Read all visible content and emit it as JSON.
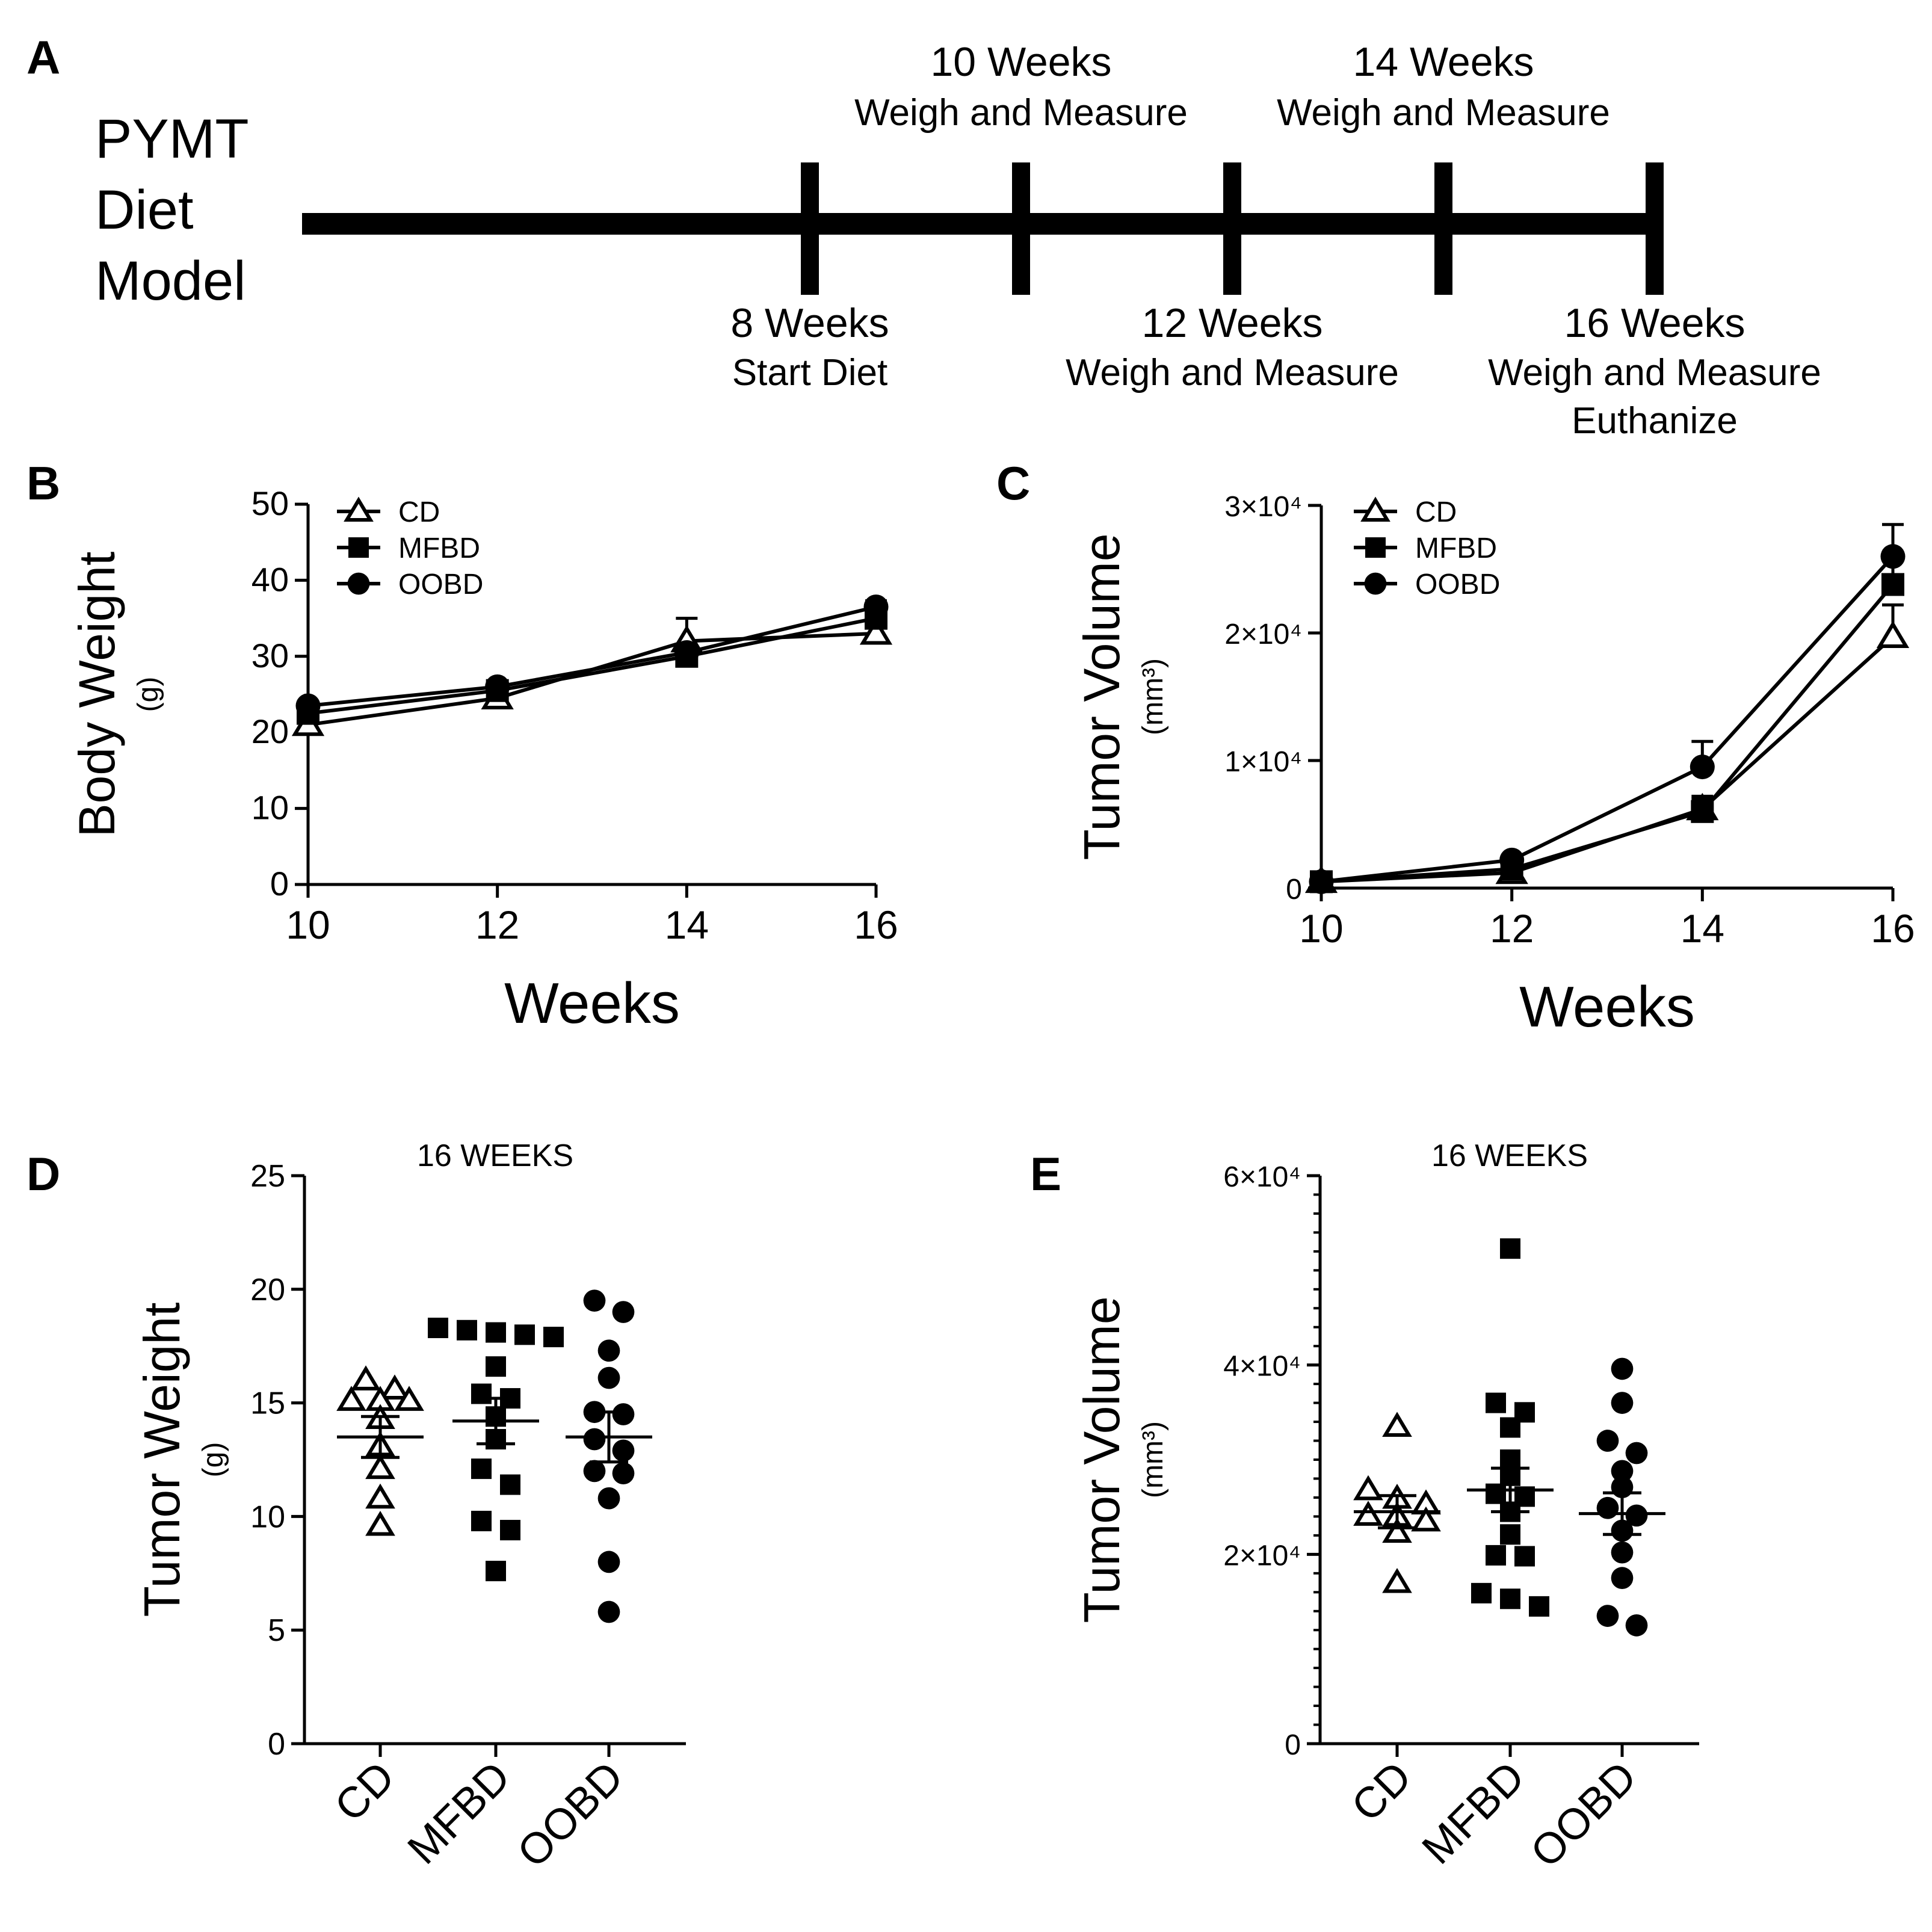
{
  "panel_labels": {
    "a": "A",
    "b": "B",
    "c": "C",
    "d": "D",
    "e": "E"
  },
  "timeline": {
    "model_lines": [
      "PYMT",
      "Diet",
      "Model"
    ],
    "above": [
      {
        "week": 10,
        "line1": "10 Weeks",
        "line2": "Weigh and Measure"
      },
      {
        "week": 14,
        "line1": "14 Weeks",
        "line2": "Weigh and Measure"
      }
    ],
    "below": [
      {
        "week": 8,
        "line1": "8 Weeks",
        "line2": "Start Diet",
        "line3": ""
      },
      {
        "week": 12,
        "line1": "12 Weeks",
        "line2": "Weigh and Measure",
        "line3": ""
      },
      {
        "week": 16,
        "line1": "16 Weeks",
        "line2": "Weigh and Measure",
        "line3": "Euthanize"
      }
    ]
  },
  "chart_data": [
    {
      "id": "B",
      "type": "line",
      "title": "",
      "xlabel": "Weeks",
      "ylabel": "Body Weight",
      "ylabel_unit": "(g)",
      "x": [
        10,
        12,
        14,
        16
      ],
      "xticks": [
        "10",
        "12",
        "14",
        "16"
      ],
      "yticks": [
        "0",
        "10",
        "20",
        "30",
        "40",
        "50"
      ],
      "ylim": [
        0,
        50
      ],
      "legend": "top-left",
      "series": [
        {
          "name": "CD",
          "marker": "triangle-open",
          "values": [
            21,
            24.5,
            32,
            33
          ],
          "err": [
            0.8,
            0.8,
            3,
            1
          ]
        },
        {
          "name": "MFBD",
          "marker": "square",
          "values": [
            22.5,
            25.5,
            30,
            35
          ],
          "err": [
            0.6,
            0.6,
            0.8,
            0.8
          ]
        },
        {
          "name": "OOBD",
          "marker": "circle",
          "values": [
            23.5,
            26,
            30.5,
            36.5
          ],
          "err": [
            0.6,
            0.6,
            0.8,
            0.8
          ]
        }
      ]
    },
    {
      "id": "C",
      "type": "line",
      "title": "",
      "xlabel": "Weeks",
      "ylabel": "Tumor Volume",
      "ylabel_unit": "(mm³)",
      "x": [
        10,
        12,
        14,
        16
      ],
      "xticks": [
        "10",
        "12",
        "14",
        "16"
      ],
      "yticks": [
        "0",
        "1×10⁴",
        "2×10⁴",
        "3×10⁴"
      ],
      "ylim": [
        0,
        30000
      ],
      "legend": "top-left",
      "series": [
        {
          "name": "CD",
          "marker": "triangle-open",
          "values": [
            500,
            1200,
            6200,
            19700
          ],
          "err": [
            100,
            200,
            1000,
            2500
          ]
        },
        {
          "name": "MFBD",
          "marker": "square",
          "values": [
            500,
            1500,
            6000,
            23800
          ],
          "err": [
            100,
            200,
            1000,
            2000
          ]
        },
        {
          "name": "OOBD",
          "marker": "circle",
          "values": [
            500,
            2200,
            9500,
            26000
          ],
          "err": [
            100,
            300,
            2000,
            2500
          ]
        }
      ]
    },
    {
      "id": "D",
      "type": "scatter",
      "title": "16 WEEKS",
      "xlabel": "",
      "ylabel": "Tumor Weight",
      "ylabel_unit": "(g)",
      "categories": [
        "CD",
        "MFBD",
        "OOBD"
      ],
      "yticks": [
        "0",
        "5",
        "10",
        "15",
        "20",
        "25"
      ],
      "ylim": [
        0,
        25
      ],
      "groups": [
        {
          "name": "CD",
          "marker": "triangle-open",
          "mean": 13.5,
          "sem": 0.9,
          "points": [
            16,
            15.6,
            15.1,
            15.1,
            15.1,
            14.3,
            13.1,
            12.1,
            10.8,
            9.6
          ]
        },
        {
          "name": "MFBD",
          "marker": "square",
          "values_note": "individual",
          "mean": 14.2,
          "sem": 1.0,
          "points": [
            18.3,
            18.2,
            18.0,
            17.9,
            18.1,
            16.6,
            15.4,
            15.2,
            14.4,
            13.4,
            12.1,
            11.4,
            9.8,
            9.4,
            7.6
          ]
        },
        {
          "name": "OOBD",
          "marker": "circle",
          "mean": 13.5,
          "sem": 1.1,
          "points": [
            19.5,
            19.0,
            17.3,
            16.1,
            14.6,
            14.5,
            13.4,
            12.9,
            12.0,
            11.9,
            10.8,
            8.0,
            5.8
          ]
        }
      ]
    },
    {
      "id": "E",
      "type": "scatter",
      "title": "16 WEEKS",
      "xlabel": "",
      "ylabel": "Tumor Volume",
      "ylabel_unit": "(mm³)",
      "categories": [
        "CD",
        "MFBD",
        "OOBD"
      ],
      "yticks": [
        "0",
        "2×10⁴",
        "4×10⁴",
        "6×10⁴"
      ],
      "ylim": [
        0,
        60000
      ],
      "groups": [
        {
          "name": "CD",
          "marker": "triangle-open",
          "mean": 24500,
          "sem": 1700,
          "points": [
            33500,
            26800,
            25900,
            25300,
            24100,
            24000,
            23500,
            22300,
            17000
          ]
        },
        {
          "name": "MFBD",
          "marker": "square",
          "mean": 26800,
          "sem": 2300,
          "points": [
            52300,
            36000,
            35000,
            33400,
            30000,
            28300,
            26400,
            26100,
            24500,
            22100,
            19900,
            19800,
            15900,
            15300,
            14500
          ]
        },
        {
          "name": "OOBD",
          "marker": "circle",
          "mean": 24300,
          "sem": 2200,
          "points": [
            39600,
            36000,
            32000,
            30700,
            28800,
            27100,
            24900,
            24100,
            22500,
            20200,
            17500,
            13500,
            12500
          ]
        }
      ]
    }
  ]
}
